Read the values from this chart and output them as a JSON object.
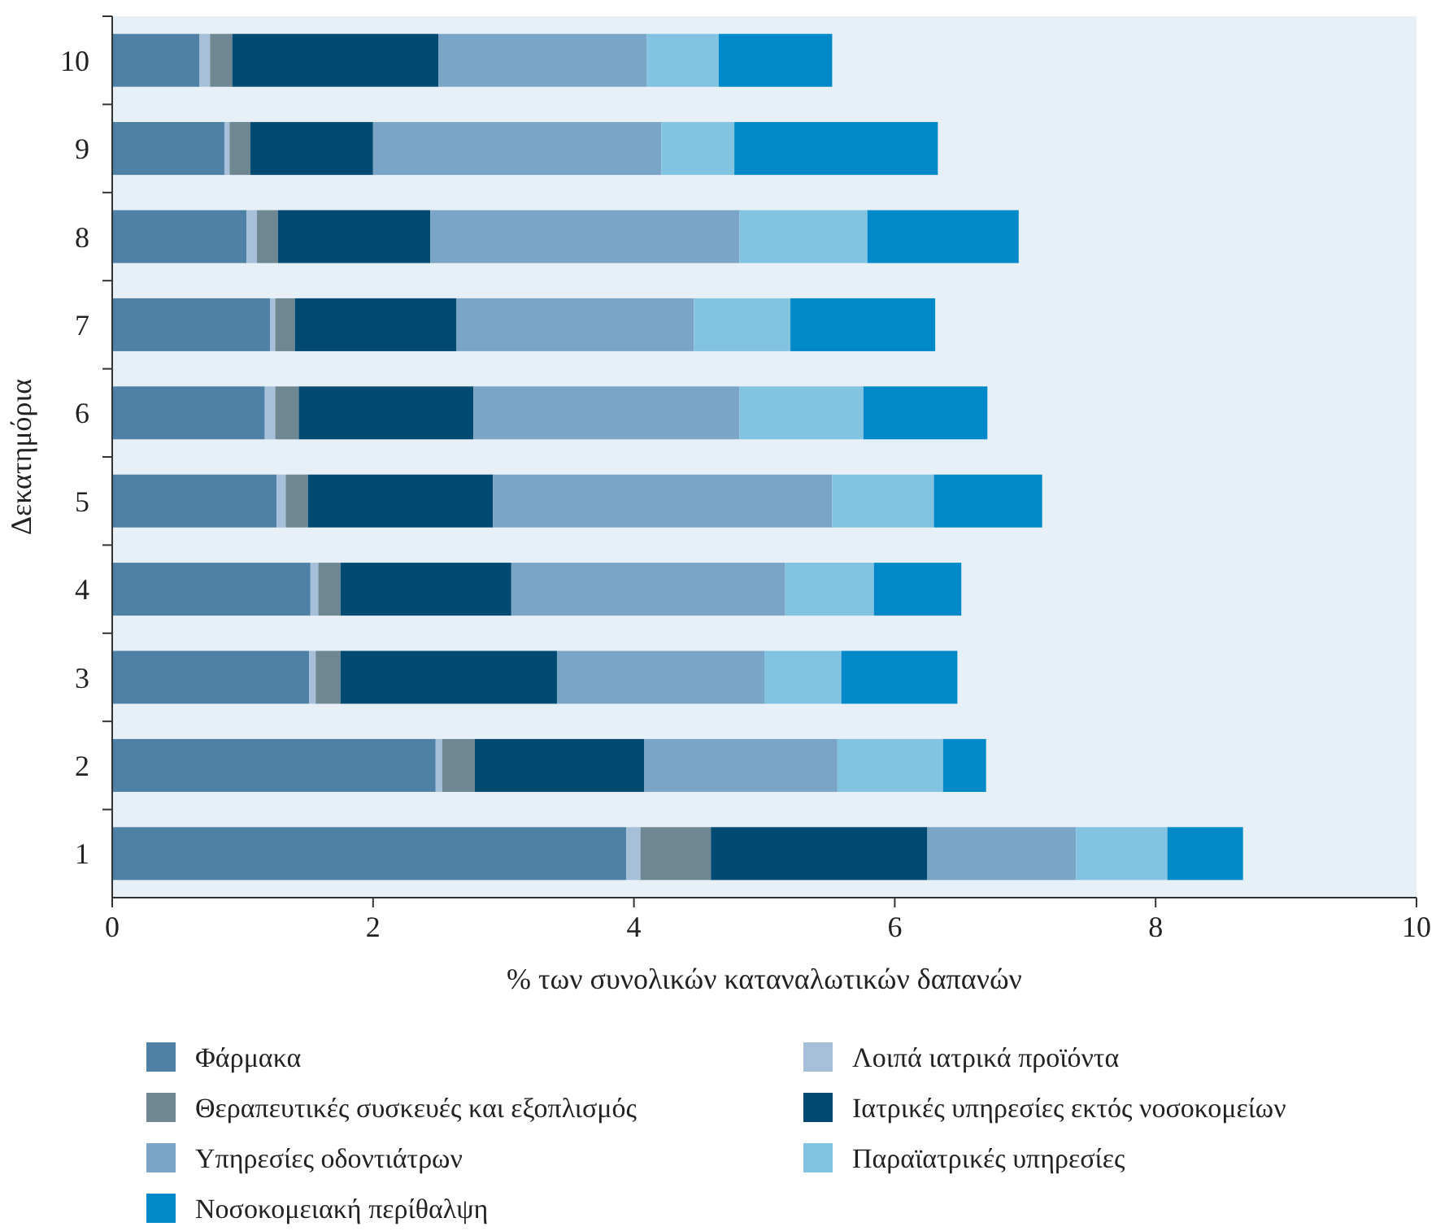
{
  "chart_data": {
    "type": "bar",
    "orientation": "horizontal",
    "stacked": true,
    "xlabel": "% των συνολικών καταναλωτικών δαπανών",
    "ylabel": "Δεκατημόρια",
    "categories": [
      "10",
      "9",
      "8",
      "7",
      "6",
      "5",
      "4",
      "3",
      "2",
      "1"
    ],
    "xlim": [
      0,
      10
    ],
    "xticks": [
      0,
      2,
      4,
      6,
      8,
      10
    ],
    "grid": false,
    "legend": "bottom",
    "series": [
      {
        "name": "Φάρμακα",
        "color": "#4f81a6",
        "values": [
          0.67,
          0.86,
          1.03,
          1.21,
          1.17,
          1.26,
          1.52,
          1.51,
          2.48,
          3.94
        ]
      },
      {
        "name": "Λοιπά ιατρικά προϊόντα",
        "color": "#a5c0d8",
        "values": [
          0.08,
          0.04,
          0.08,
          0.04,
          0.08,
          0.07,
          0.06,
          0.05,
          0.05,
          0.11
        ]
      },
      {
        "name": "Θεραπευτικές συσκευές και εξοπλισμός",
        "color": "#6e8792",
        "values": [
          0.17,
          0.16,
          0.16,
          0.15,
          0.18,
          0.17,
          0.17,
          0.19,
          0.25,
          0.54
        ]
      },
      {
        "name": "Ιατρικές υπηρεσίες εκτός νοσοκομείων",
        "color": "#034a73",
        "values": [
          1.58,
          0.94,
          1.17,
          1.24,
          1.34,
          1.42,
          1.31,
          1.66,
          1.3,
          1.66
        ]
      },
      {
        "name": "Υπηρεσίες οδοντιάτρων",
        "color": "#7ba5c6",
        "values": [
          1.6,
          2.21,
          2.37,
          1.82,
          2.04,
          2.6,
          2.1,
          1.59,
          1.48,
          1.14
        ]
      },
      {
        "name": "Παραϊατρικές υπηρεσίες",
        "color": "#82c3e2",
        "values": [
          0.55,
          0.56,
          0.98,
          0.74,
          0.95,
          0.78,
          0.68,
          0.59,
          0.81,
          0.7
        ]
      },
      {
        "name": "Νοσοκομειακή περίθαλψη",
        "color": "#0089c8",
        "values": [
          0.87,
          1.56,
          1.16,
          1.11,
          0.95,
          0.83,
          0.67,
          0.89,
          0.33,
          0.58
        ]
      }
    ]
  }
}
